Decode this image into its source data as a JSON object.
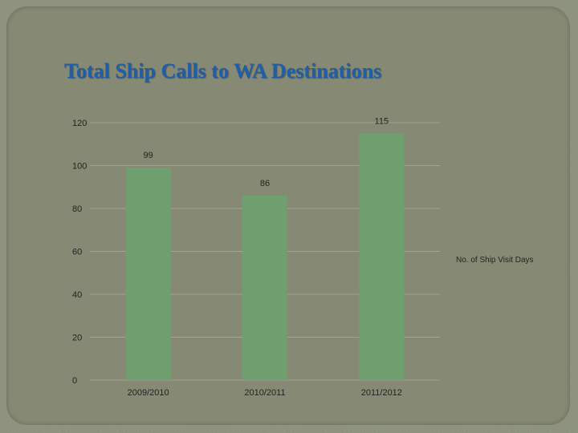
{
  "slide": {
    "title": "Total Ship Calls to WA Destinations"
  },
  "chart_data": {
    "type": "bar",
    "categories": [
      "2009/2010",
      "2010/2011",
      "2011/2012"
    ],
    "series": [
      {
        "name": "No. of Ship Visit Days",
        "values": [
          99,
          86,
          115
        ],
        "color": "#6f9e6f"
      }
    ],
    "data_labels": [
      "99",
      "86",
      "115"
    ],
    "y_ticks": [
      "0",
      "20",
      "40",
      "60",
      "80",
      "100",
      "120"
    ],
    "ylim": [
      0,
      120
    ],
    "grid": true,
    "legend_position": "right",
    "colors": {
      "gridline": "#a3a38f",
      "bar": "#6f9e6f"
    }
  }
}
